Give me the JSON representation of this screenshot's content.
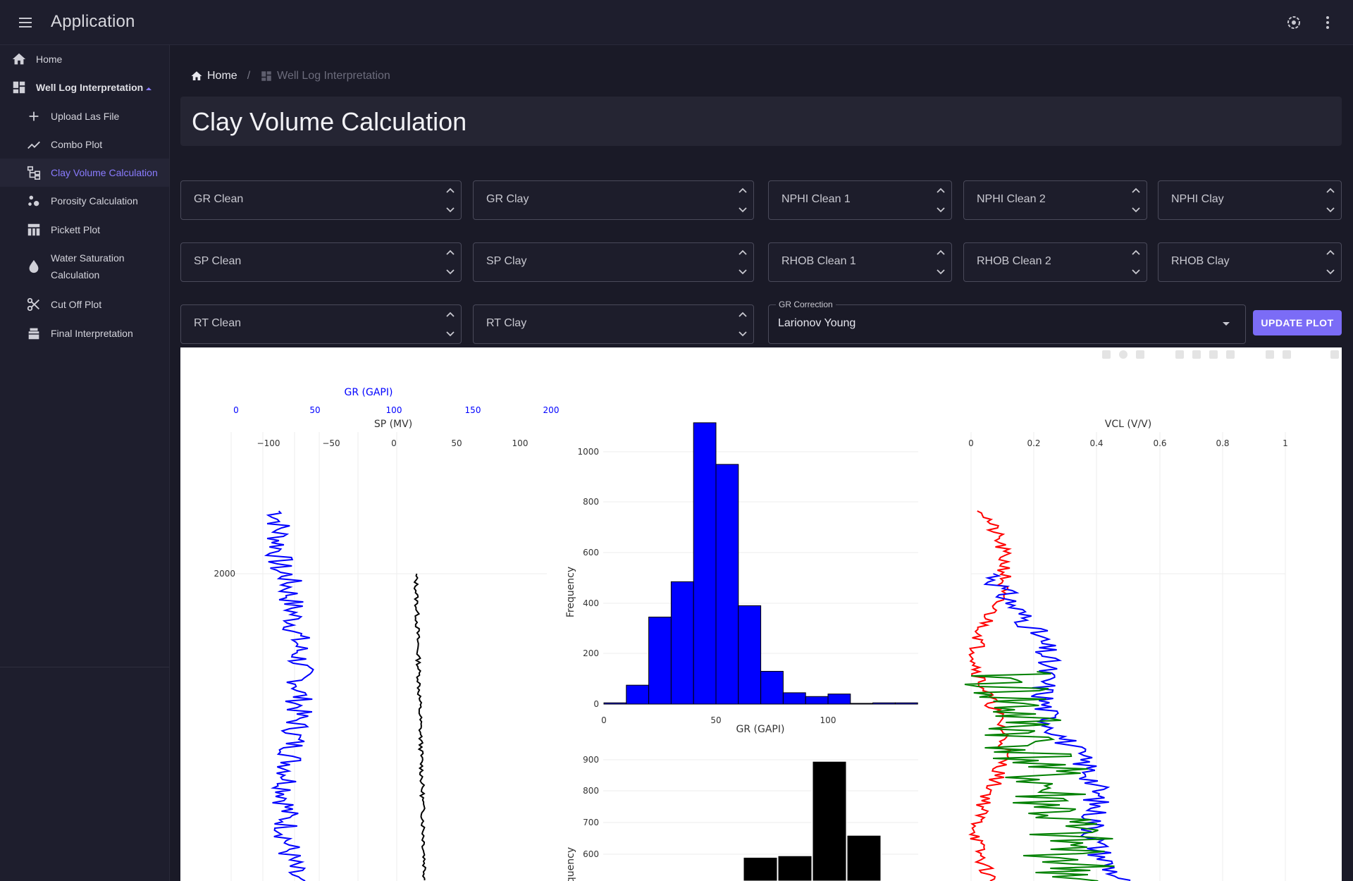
{
  "app": {
    "title": "Application"
  },
  "sidebar": {
    "items": [
      {
        "label": "Home"
      },
      {
        "label": "Well Log Interpretation"
      },
      {
        "label": "Upload Las File"
      },
      {
        "label": "Combo Plot"
      },
      {
        "label": "Clay Volume Calculation"
      },
      {
        "label": "Porosity Calculation"
      },
      {
        "label": "Pickett Plot"
      },
      {
        "label": "Water Saturation Calculation"
      },
      {
        "label": "Cut Off Plot"
      },
      {
        "label": "Final Interpretation"
      }
    ]
  },
  "breadcrumb": {
    "home": "Home",
    "current": "Well Log Interpretation"
  },
  "page": {
    "title": "Clay Volume Calculation"
  },
  "inputs": {
    "gr_clean": "GR Clean",
    "gr_clay": "GR Clay",
    "nphi_clean1": "NPHI Clean 1",
    "nphi_clean2": "NPHI Clean 2",
    "nphi_clay": "NPHI Clay",
    "sp_clean": "SP Clean",
    "sp_clay": "SP Clay",
    "rhob_clean1": "RHOB Clean 1",
    "rhob_clean2": "RHOB Clean 2",
    "rhob_clay": "RHOB Clay",
    "rt_clean": "RT Clean",
    "rt_clay": "RT Clay"
  },
  "gr_correction": {
    "label": "GR Correction",
    "value": "Larionov Young"
  },
  "update_button": "UPDATE PLOT",
  "colors": {
    "accent": "#7b6cf6",
    "gr": "#0000ff",
    "sp": "#000000",
    "vcl_red": "#ff0000",
    "vcl_green": "#008000"
  },
  "chart_data": [
    {
      "type": "line",
      "title": "",
      "x_axes": [
        {
          "label": "GR (GAPI)",
          "ticks": [
            "0",
            "50",
            "100",
            "150",
            "200"
          ],
          "range": [
            0,
            200
          ],
          "color": "#0000ff"
        },
        {
          "label": "SP (MV)",
          "ticks": [
            "−100",
            "−50",
            "0",
            "50",
            "100"
          ],
          "range": [
            -120,
            120
          ],
          "color": "#000000"
        }
      ],
      "y_axis": {
        "ticks": [
          "2000"
        ]
      },
      "series": []
    },
    {
      "type": "bar",
      "title": "",
      "xlabel": "GR (GAPI)",
      "ylabel": "Frequency",
      "x_ticks": [
        "0",
        "50",
        "100"
      ],
      "y_ticks": [
        "0",
        "200",
        "400",
        "600",
        "800",
        "1000"
      ],
      "ylim": [
        0,
        1120
      ],
      "xlim": [
        0,
        140
      ],
      "bin_width": 10,
      "bin_starts": [
        0,
        10,
        20,
        30,
        40,
        50,
        60,
        70,
        80,
        90,
        100,
        110,
        120,
        130
      ],
      "values": [
        5,
        75,
        345,
        485,
        1115,
        950,
        390,
        130,
        45,
        30,
        40,
        3,
        5,
        5
      ]
    },
    {
      "type": "bar",
      "title": "",
      "xlabel": "",
      "ylabel": "Frequency",
      "y_ticks": [
        "600",
        "700",
        "800",
        "900"
      ],
      "ylim": [
        480,
        930
      ],
      "bin_starts": [
        0,
        1,
        2,
        3
      ],
      "values": [
        590,
        595,
        895,
        660
      ]
    },
    {
      "type": "line",
      "title": "",
      "x_axis": {
        "label": "VCL (V/V)",
        "ticks": [
          "0",
          "0.2",
          "0.4",
          "0.6",
          "0.8",
          "1"
        ],
        "range": [
          0,
          1
        ]
      },
      "series": []
    }
  ]
}
